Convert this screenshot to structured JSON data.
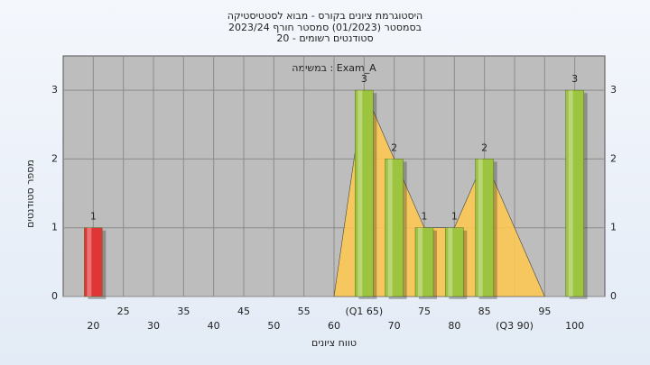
{
  "chart_data": {
    "type": "bar",
    "title": "היסטוגרמת ציונים בקורס - מבוא לסטטיסטיקה",
    "subtitle": "בסמסטר  (01/2023)  סמסטר חורף 2023/24",
    "subtitle2": "סטודנטים רשומים - 20",
    "annotation": "במשימה : Exam_A",
    "x_label": "טווח ציונים",
    "y_label": "מספר סטודנטים",
    "xlim": [
      15,
      105
    ],
    "xticks": [
      20,
      25,
      30,
      35,
      40,
      45,
      50,
      55,
      60,
      {
        "value": 65,
        "label": "(Q1 65)"
      },
      70,
      75,
      80,
      85,
      {
        "value": 90,
        "label": "(Q3 90)"
      },
      95,
      100
    ],
    "ylim": [
      0,
      3.5
    ],
    "yticks": [
      0,
      1,
      2,
      3
    ],
    "grid": true,
    "bars": {
      "x": [
        20,
        65,
        70,
        75,
        80,
        85,
        100
      ],
      "values": [
        1,
        3,
        2,
        1,
        1,
        2,
        3
      ],
      "colors": [
        "#e03535",
        "#9cc43e",
        "#9cc43e",
        "#9cc43e",
        "#9cc43e",
        "#9cc43e",
        "#9cc43e"
      ]
    },
    "area": {
      "x": [
        60,
        65,
        70,
        75,
        80,
        85,
        95
      ],
      "values": [
        0,
        3,
        2,
        1,
        1,
        2,
        0
      ],
      "color": "#ffc94d"
    }
  }
}
